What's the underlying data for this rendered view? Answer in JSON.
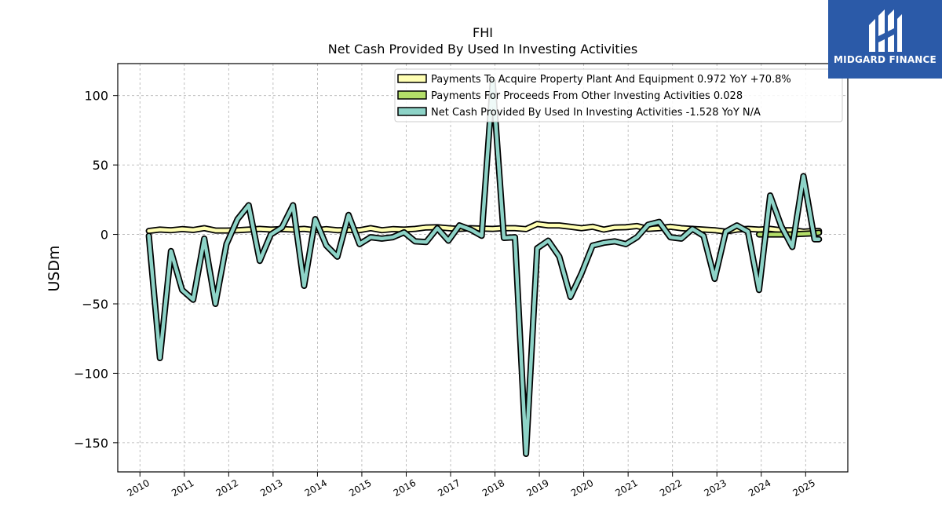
{
  "chart_data": {
    "type": "line",
    "title": "FHI",
    "subtitle": "Net Cash Provided By Used In Investing Activities",
    "ylabel": "USDm",
    "xlabel": "",
    "ylim": [
      -171,
      123
    ],
    "xlim": [
      2009.5,
      2025.95
    ],
    "yticks": [
      100,
      50,
      0,
      -50,
      -100,
      -150
    ],
    "ytick_labels": [
      "100",
      "50",
      "0",
      "−50",
      "−100",
      "−150"
    ],
    "xticks": [
      2010,
      2011,
      2012,
      2013,
      2014,
      2015,
      2016,
      2017,
      2018,
      2019,
      2020,
      2021,
      2022,
      2023,
      2024,
      2025
    ],
    "xtick_labels": [
      "2010",
      "2011",
      "2012",
      "2013",
      "2014",
      "2015",
      "2016",
      "2017",
      "2018",
      "2019",
      "2020",
      "2021",
      "2022",
      "2023",
      "2024",
      "2025"
    ],
    "grid": true,
    "legend_position": "top-right",
    "colors": {
      "ppe": "#ffffb3",
      "other": "#b3de69",
      "net": "#8dd3c7",
      "outline": "#000000",
      "grid": "#b0b0b0"
    },
    "series": [
      {
        "name": "Payments To Acquire Property Plant And Equipment",
        "legend_label": "Payments To Acquire Property Plant And Equipment  0.972 YoY +70.8%",
        "color": "#ffffb3",
        "x": [
          2010.2,
          2010.45,
          2010.7,
          2010.95,
          2011.2,
          2011.45,
          2011.7,
          2011.95,
          2012.2,
          2012.45,
          2012.7,
          2012.95,
          2013.2,
          2013.45,
          2013.7,
          2013.95,
          2014.2,
          2014.45,
          2014.7,
          2014.95,
          2015.2,
          2015.45,
          2015.7,
          2015.95,
          2016.2,
          2016.45,
          2016.7,
          2016.95,
          2017.2,
          2017.45,
          2017.7,
          2017.95,
          2018.2,
          2018.45,
          2018.7,
          2018.95,
          2019.2,
          2019.45,
          2019.7,
          2019.95,
          2020.2,
          2020.45,
          2020.7,
          2020.95,
          2021.2,
          2021.45,
          2021.7,
          2021.95,
          2022.2,
          2022.45,
          2022.7,
          2022.95,
          2023.2,
          2023.45,
          2023.7,
          2023.95,
          2024.2,
          2024.45,
          2024.7,
          2024.95,
          2025.2,
          2025.3
        ],
        "values": [
          2.5,
          3.5,
          3.0,
          3.8,
          3.2,
          4.5,
          2.8,
          2.8,
          3.0,
          3.5,
          4.0,
          3.5,
          3.8,
          3.5,
          4.0,
          3.0,
          3.8,
          3.0,
          3.2,
          3.0,
          4.5,
          3.0,
          3.8,
          3.5,
          4.0,
          5.0,
          5.2,
          4.5,
          4.0,
          4.5,
          4.2,
          4.0,
          4.5,
          4.5,
          3.8,
          7.5,
          6.5,
          6.5,
          5.5,
          4.5,
          5.5,
          3.5,
          5.0,
          5.2,
          6.0,
          4.0,
          4.5,
          5.5,
          4.5,
          4.0,
          3.5,
          3.0,
          2.0,
          3.5,
          4.0,
          3.5,
          4.0,
          3.0,
          3.0,
          2.0,
          2.5,
          2.5
        ]
      },
      {
        "name": "Payments For Proceeds From Other Investing Activities",
        "legend_label": "Payments For Proceeds From Other Investing Activities  0.028",
        "color": "#b3de69",
        "x": [
          2023.95,
          2024.2,
          2024.45,
          2024.7,
          2024.95,
          2025.2,
          2025.3
        ],
        "values": [
          0.0,
          0.0,
          0.0,
          0.0,
          0.5,
          0.8,
          1.2
        ]
      },
      {
        "name": "Net Cash Provided By Used In Investing Activities",
        "legend_label": "Net Cash Provided By Used In Investing Activities  -1.528 YoY N/A",
        "color": "#8dd3c7",
        "x": [
          2010.2,
          2010.45,
          2010.7,
          2010.95,
          2011.2,
          2011.45,
          2011.7,
          2011.95,
          2012.2,
          2012.45,
          2012.7,
          2012.95,
          2013.2,
          2013.45,
          2013.7,
          2013.95,
          2014.2,
          2014.45,
          2014.7,
          2014.95,
          2015.2,
          2015.45,
          2015.7,
          2015.95,
          2016.2,
          2016.45,
          2016.7,
          2016.95,
          2017.2,
          2017.45,
          2017.7,
          2017.95,
          2018.2,
          2018.45,
          2018.7,
          2018.95,
          2019.2,
          2019.45,
          2019.7,
          2019.95,
          2020.2,
          2020.45,
          2020.7,
          2020.95,
          2021.2,
          2021.45,
          2021.7,
          2021.95,
          2022.2,
          2022.45,
          2022.7,
          2022.95,
          2023.2,
          2023.45,
          2023.7,
          2023.95,
          2024.2,
          2024.45,
          2024.7,
          2024.95,
          2025.2,
          2025.3
        ],
        "values": [
          -1.0,
          -89.0,
          -12.0,
          -40.0,
          -47.0,
          -3.0,
          -50.0,
          -7.0,
          11.0,
          21.0,
          -19.0,
          0.0,
          5.0,
          21.0,
          -37.0,
          11.0,
          -8.0,
          -16.0,
          14.0,
          -7.0,
          -2.0,
          -3.0,
          -2.0,
          1.5,
          -5.0,
          -5.5,
          4.5,
          -4.5,
          6.5,
          3.5,
          -1.0,
          110.0,
          -2.5,
          -2.0,
          -158.0,
          -10.0,
          -4.5,
          -16.0,
          -45.0,
          -28.0,
          -8.0,
          -6.0,
          -5.0,
          -7.0,
          -2.0,
          7.0,
          9.0,
          -2.0,
          -3.0,
          4.0,
          -1.0,
          -32.0,
          2.0,
          6.5,
          2.0,
          -40.0,
          28.0,
          6.0,
          -9.0,
          42.0,
          -3.5,
          -3.5
        ]
      }
    ]
  },
  "logo": {
    "text": "MIDGARD FINANCE",
    "icon": "midgard-logo-icon",
    "background": "#2b5aa8"
  }
}
